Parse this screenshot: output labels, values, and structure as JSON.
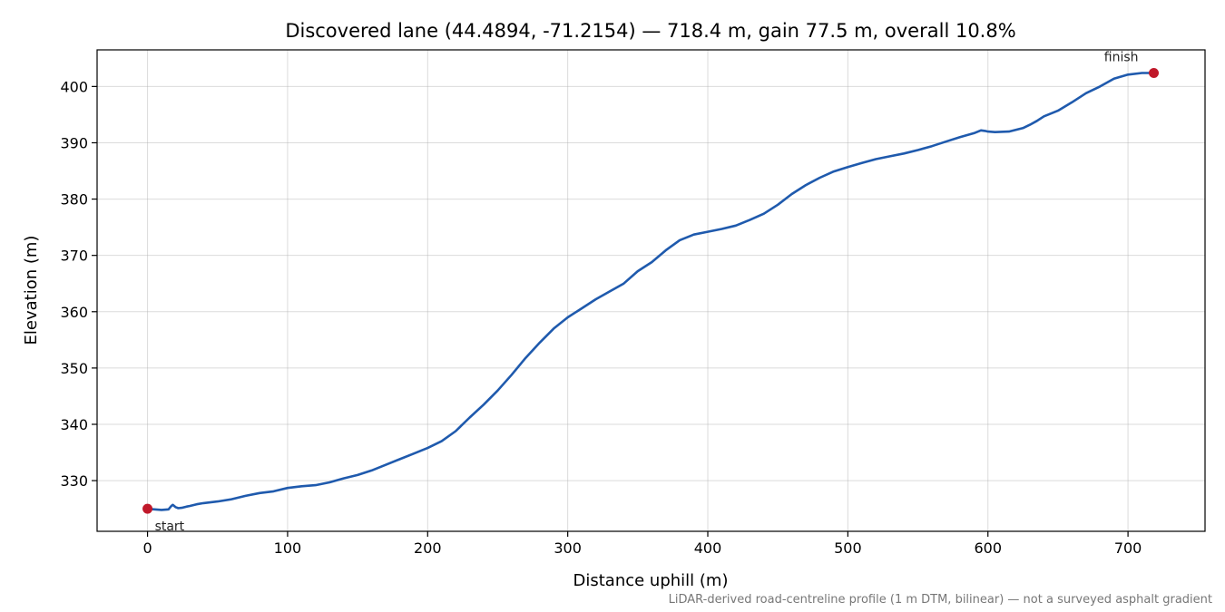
{
  "chart_data": {
    "type": "line",
    "title": "Discovered lane (44.4894, -71.2154) — 718.4 m, gain 77.5 m, overall 10.8%",
    "xlabel": "Distance uphill (m)",
    "ylabel": "Elevation (m)",
    "xlim": [
      -36,
      755
    ],
    "ylim": [
      321,
      406.5
    ],
    "xticks": [
      0,
      100,
      200,
      300,
      400,
      500,
      600,
      700
    ],
    "yticks": [
      330,
      340,
      350,
      360,
      370,
      380,
      390,
      400
    ],
    "grid": true,
    "footnote": "LiDAR-derived road-centreline profile (1 m DTM, bilinear) — not a surveyed asphalt gradient",
    "series": [
      {
        "color": "#1f5aad",
        "x": [
          0,
          5,
          10,
          15,
          17,
          18,
          20,
          22,
          25,
          28,
          30,
          35,
          40,
          50,
          60,
          70,
          80,
          90,
          100,
          110,
          120,
          130,
          140,
          150,
          160,
          170,
          180,
          190,
          200,
          210,
          220,
          230,
          240,
          250,
          260,
          270,
          280,
          290,
          300,
          310,
          320,
          330,
          340,
          350,
          360,
          370,
          380,
          390,
          400,
          410,
          420,
          430,
          440,
          450,
          460,
          470,
          480,
          490,
          500,
          510,
          520,
          530,
          540,
          550,
          560,
          570,
          580,
          590,
          595,
          598,
          600,
          605,
          615,
          625,
          630,
          635,
          640,
          650,
          660,
          670,
          680,
          690,
          700,
          710,
          718.4
        ],
        "y": [
          325.0,
          324.9,
          324.8,
          324.9,
          325.5,
          325.7,
          325.3,
          325.1,
          325.2,
          325.4,
          325.5,
          325.8,
          326.0,
          326.3,
          326.7,
          327.3,
          327.8,
          328.1,
          328.7,
          329.0,
          329.2,
          329.7,
          330.4,
          331.0,
          331.8,
          332.8,
          333.8,
          334.8,
          335.8,
          337.0,
          338.8,
          341.2,
          343.5,
          346.0,
          348.8,
          351.8,
          354.5,
          357.0,
          359.0,
          360.6,
          362.2,
          363.6,
          365.0,
          367.2,
          368.8,
          370.9,
          372.7,
          373.7,
          374.2,
          374.7,
          375.3,
          376.3,
          377.4,
          379.0,
          380.9,
          382.5,
          383.8,
          384.9,
          385.7,
          386.4,
          387.1,
          387.6,
          388.1,
          388.7,
          389.4,
          390.2,
          391.0,
          391.7,
          392.2,
          392.1,
          392.0,
          391.9,
          392.0,
          392.6,
          393.2,
          393.9,
          394.7,
          395.7,
          397.2,
          398.8,
          400.0,
          401.4,
          402.1,
          402.4,
          402.4
        ]
      }
    ],
    "markers": [
      {
        "label": "start",
        "x": 0,
        "y": 325.0,
        "color": "#c0182a"
      },
      {
        "label": "finish",
        "x": 718.4,
        "y": 402.4,
        "color": "#c0182a"
      }
    ]
  }
}
